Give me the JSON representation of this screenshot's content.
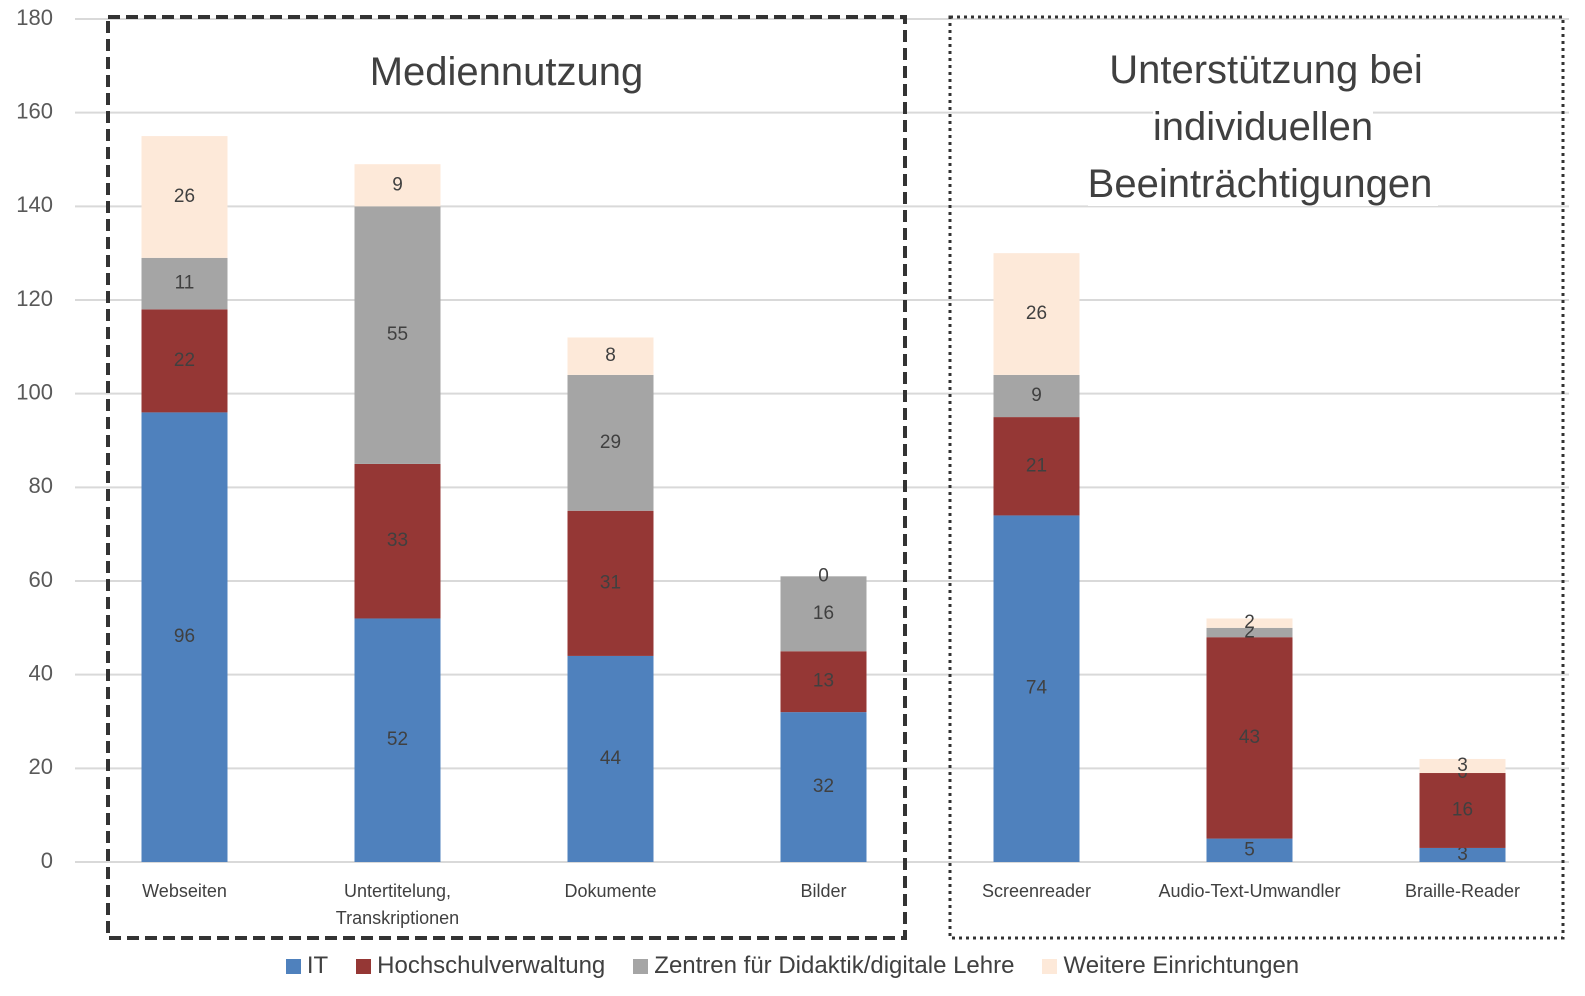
{
  "chart_data": {
    "type": "stacked_bar",
    "annotations": [
      "Mediennutzung",
      "Unterstützung bei individuellen Beeinträchtigungen"
    ],
    "categories": [
      "Webseiten",
      "Untertitelung, Transkriptionen",
      "Dokumente",
      "Bilder",
      "Screenreader",
      "Audio-Text-Umwandler",
      "Braille-Reader"
    ],
    "series": [
      {
        "name": "IT",
        "color": "#4f81bd",
        "values": [
          96,
          52,
          44,
          32,
          74,
          5,
          3
        ]
      },
      {
        "name": "Hochschulverwaltung",
        "color": "#953735",
        "values": [
          22,
          33,
          31,
          13,
          21,
          43,
          16
        ]
      },
      {
        "name": "Zentren für Didaktik/digitale Lehre",
        "color": "#a5a5a5",
        "values": [
          11,
          55,
          29,
          16,
          9,
          2,
          0
        ]
      },
      {
        "name": "Weitere Einrichtungen",
        "color": "#fde9d9",
        "values": [
          26,
          9,
          8,
          0,
          26,
          2,
          3
        ]
      }
    ],
    "ylim": [
      0,
      180
    ],
    "yticks": [
      0,
      20,
      40,
      60,
      80,
      100,
      120,
      140,
      160,
      180
    ],
    "grid": true,
    "legend": "bottom"
  }
}
